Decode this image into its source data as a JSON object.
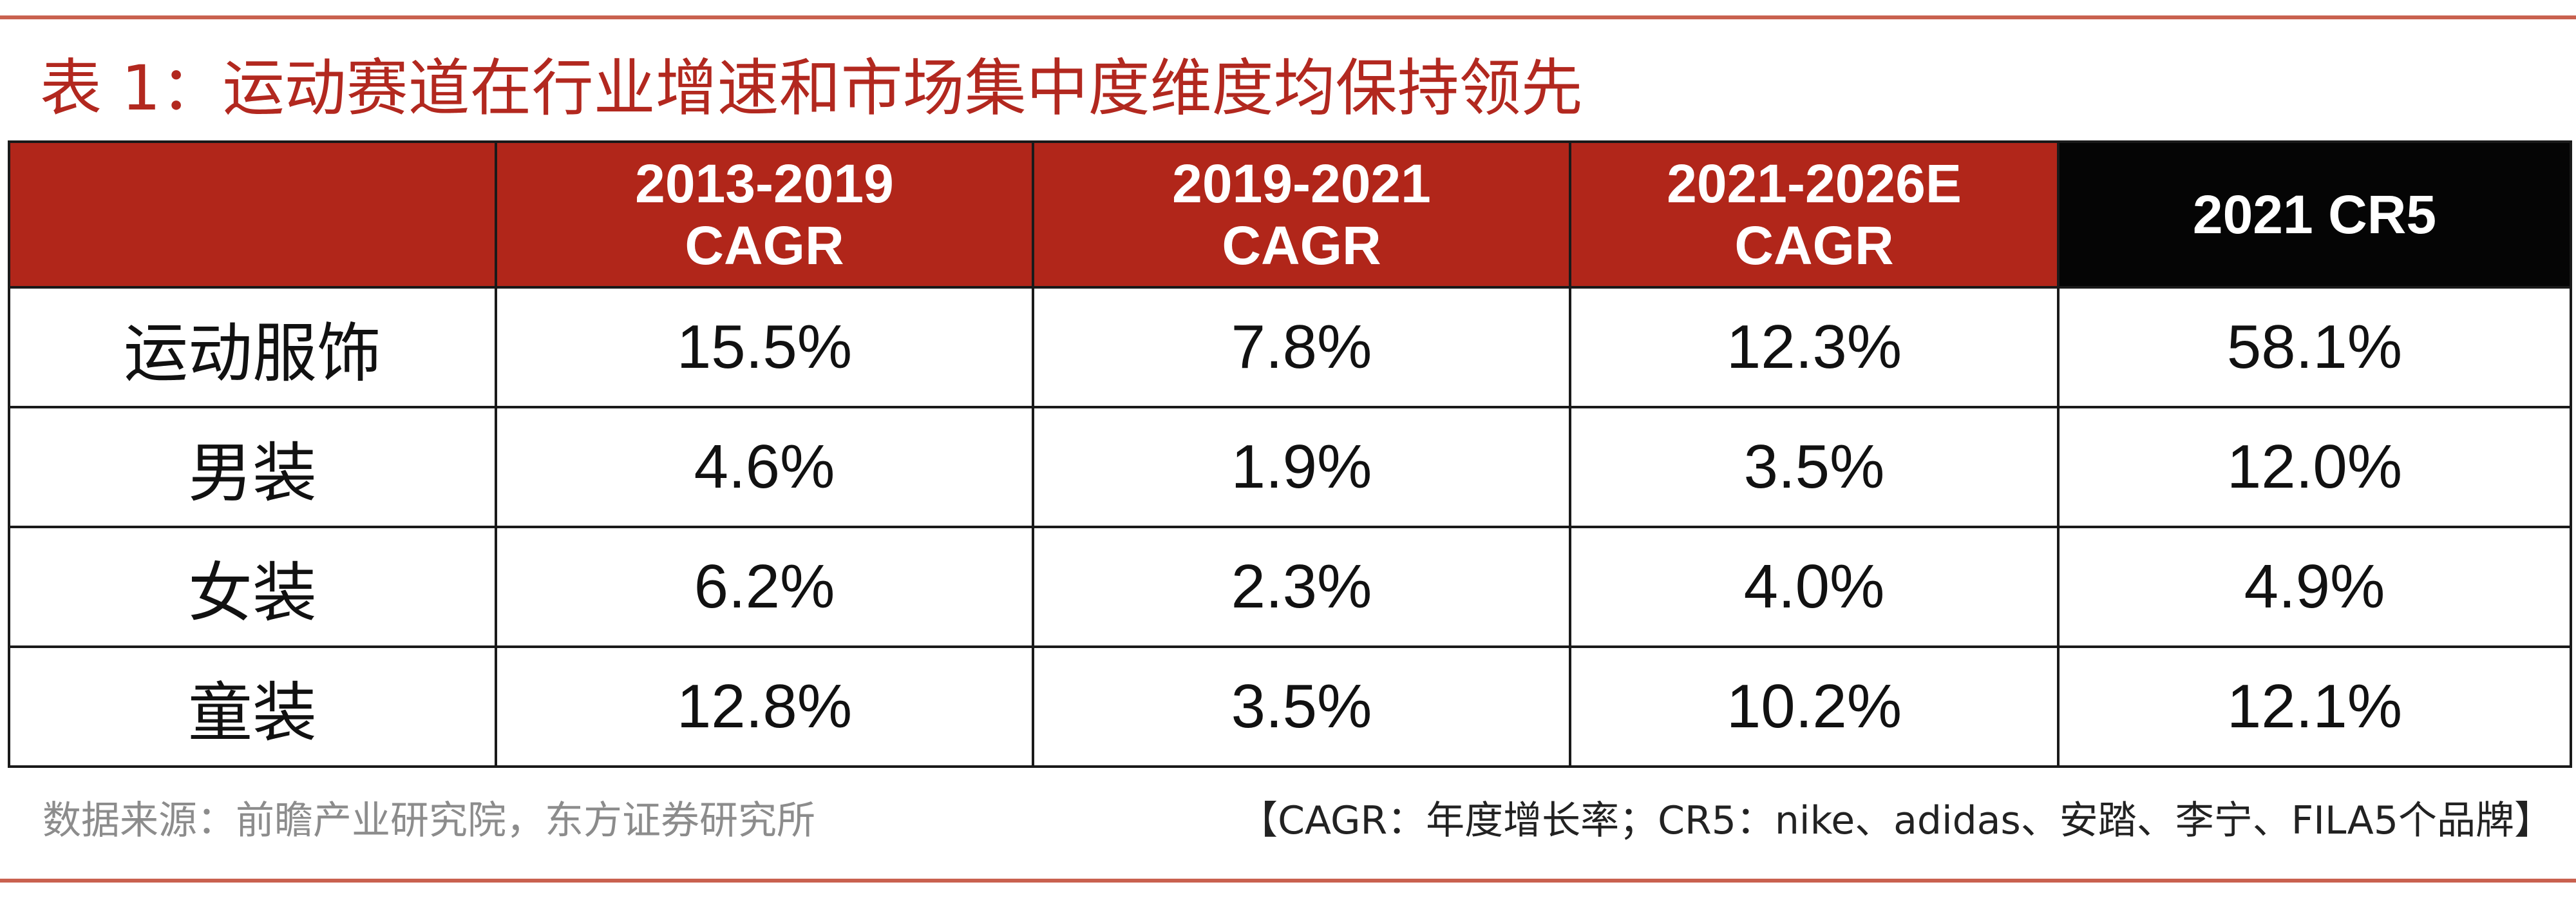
{
  "title": "表 1：运动赛道在行业增速和市场集中度维度均保持领先",
  "table": {
    "headers": [
      {
        "line1": "",
        "line2": ""
      },
      {
        "line1": "2013-2019",
        "line2": "CAGR"
      },
      {
        "line1": "2019-2021",
        "line2": "CAGR"
      },
      {
        "line1": "2021-2026E",
        "line2": "CAGR"
      },
      {
        "line1": "2021 CR5",
        "line2": ""
      }
    ],
    "rows": [
      {
        "label": "运动服饰",
        "values": [
          "15.5%",
          "7.8%",
          "12.3%",
          "58.1%"
        ]
      },
      {
        "label": "男装",
        "values": [
          "4.6%",
          "1.9%",
          "3.5%",
          "12.0%"
        ]
      },
      {
        "label": "女装",
        "values": [
          "6.2%",
          "2.3%",
          "4.0%",
          "4.9%"
        ]
      },
      {
        "label": "童装",
        "values": [
          "12.8%",
          "3.5%",
          "10.2%",
          "12.1%"
        ]
      }
    ]
  },
  "source": "数据来源：前瞻产业研究院，东方证券研究所",
  "note": "【CAGR：年度增长率；CR5：nike、adidas、安踏、李宁、FILA5个品牌】",
  "colors": {
    "header_red": "#b1261a",
    "header_black": "#050505",
    "title_red": "#b2281f",
    "rule": "#c9614f"
  }
}
